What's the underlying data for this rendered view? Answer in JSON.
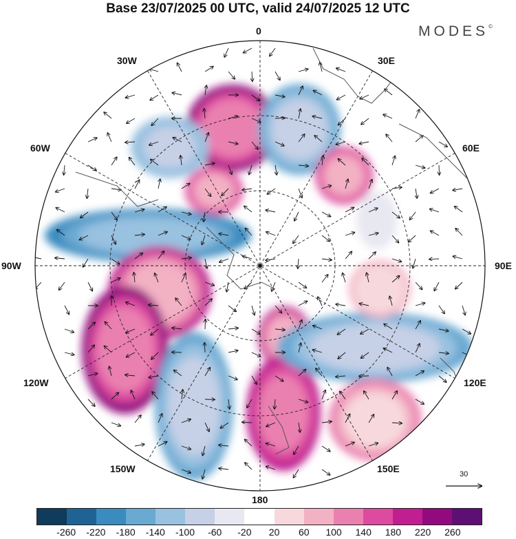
{
  "title": "Base 23/07/2025 00 UTC, valid 24/07/2025 12 UTC",
  "brand": "MODES",
  "brand_mark": "©",
  "longitude_labels": {
    "lon_0": "0",
    "lon_30e": "30E",
    "lon_60e": "60E",
    "lon_90e": "90E",
    "lon_120e": "120E",
    "lon_150e": "150E",
    "lon_180": "180",
    "lon_150w": "150W",
    "lon_120w": "120W",
    "lon_90w": "90W",
    "lon_60w": "60W",
    "lon_30w": "30W"
  },
  "wind_reference_value": "30",
  "colorbar": {
    "colors": [
      "#0f3b5c",
      "#1f6394",
      "#3a8bc0",
      "#6aa9d2",
      "#99c1e0",
      "#c6d0e6",
      "#e8e8f2",
      "#ffffff",
      "#f7d9dd",
      "#f3b1c4",
      "#ea80b0",
      "#dc4ba0",
      "#c01e91",
      "#930a7e",
      "#5e0f73"
    ],
    "tick_labels": [
      "-260",
      "-220",
      "-180",
      "-140",
      "-100",
      "-60",
      "-20",
      "20",
      "60",
      "100",
      "140",
      "180",
      "220",
      "260"
    ]
  },
  "anomaly_features": [
    {
      "name": "positive-high-north-center",
      "value": 220
    },
    {
      "name": "negative-low-north-east",
      "value": -180
    },
    {
      "name": "negative-low-north-west",
      "value": -140
    },
    {
      "name": "positive-high-center-west",
      "value": 140
    },
    {
      "name": "negative-low-west-band",
      "value": -220
    },
    {
      "name": "positive-high-west-ridge",
      "value": 180
    },
    {
      "name": "positive-high-southwest",
      "value": 220
    },
    {
      "name": "negative-low-south-southwest",
      "value": -180
    },
    {
      "name": "positive-high-south",
      "value": 180
    },
    {
      "name": "positive-high-south-center",
      "value": 200
    },
    {
      "name": "negative-low-east-band",
      "value": -180
    },
    {
      "name": "positive-high-southeast",
      "value": 100
    },
    {
      "name": "positive-high-northeast",
      "value": 140
    },
    {
      "name": "positive-high-east",
      "value": 60
    },
    {
      "name": "negative-low-east-small",
      "value": -60
    }
  ]
}
